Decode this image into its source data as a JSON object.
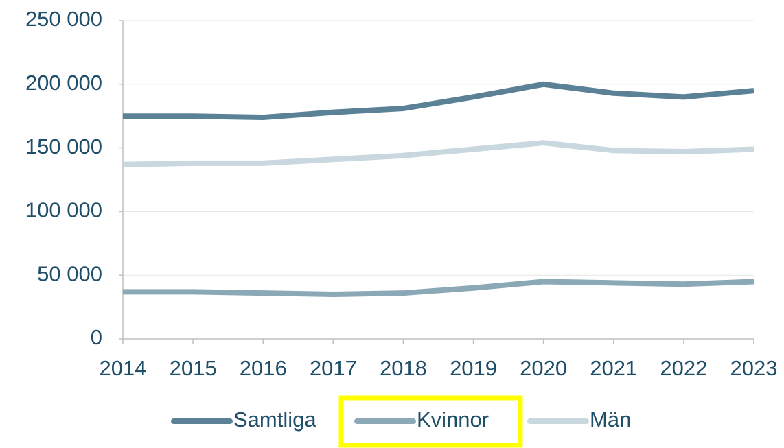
{
  "chart_data": {
    "type": "line",
    "categories": [
      "2014",
      "2015",
      "2016",
      "2017",
      "2018",
      "2019",
      "2020",
      "2021",
      "2022",
      "2023"
    ],
    "series": [
      {
        "name": "Samtliga",
        "color": "#5b8197",
        "values": [
          175000,
          175000,
          174000,
          178000,
          181000,
          190000,
          200000,
          193000,
          190000,
          195000
        ]
      },
      {
        "name": "Kvinnor",
        "color": "#8aa8b5",
        "values": [
          37000,
          37000,
          36000,
          35000,
          36000,
          40000,
          45000,
          44000,
          43000,
          45000
        ]
      },
      {
        "name": "Män",
        "color": "#c9d7de",
        "values": [
          137000,
          138000,
          138000,
          141000,
          144000,
          149000,
          154000,
          148000,
          147000,
          149000
        ]
      }
    ],
    "ylim": [
      0,
      250000
    ],
    "yticks": [
      0,
      {
        "value": 50000,
        "label": "50 000"
      },
      {
        "value": 100000,
        "label": "100 000"
      },
      {
        "value": 150000,
        "label": "150 000"
      },
      {
        "value": 200000,
        "label": "200 000"
      },
      {
        "value": 250000,
        "label": "250 000"
      }
    ],
    "grid": true
  }
}
